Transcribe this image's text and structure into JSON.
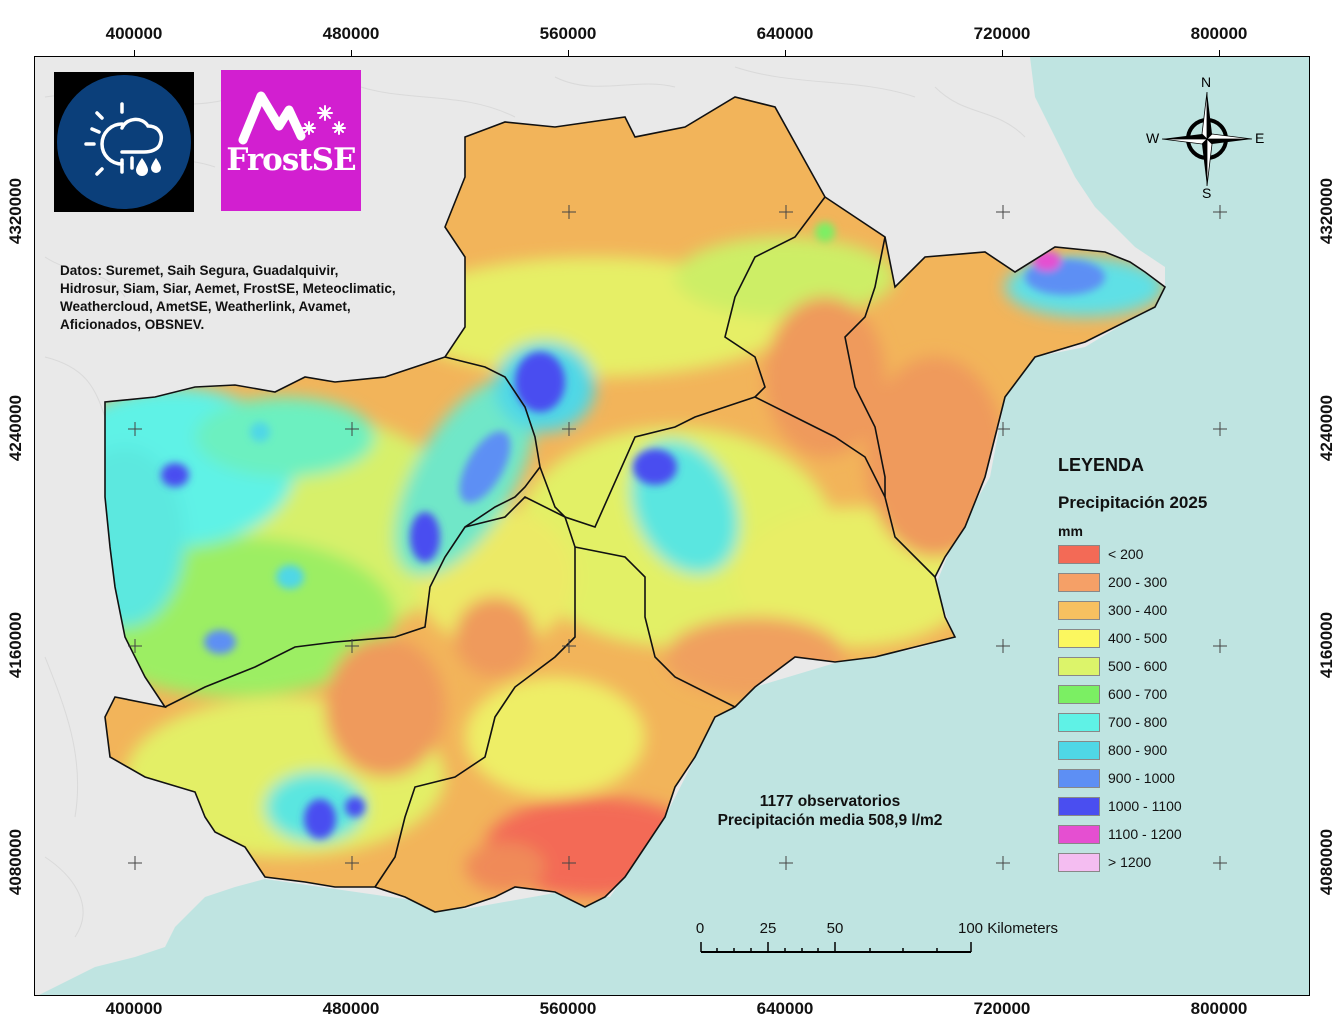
{
  "axes": {
    "x_ticks": [
      "400000",
      "480000",
      "560000",
      "640000",
      "720000",
      "800000"
    ],
    "y_ticks": [
      "4320000",
      "4240000",
      "4160000",
      "4080000"
    ]
  },
  "logos": {
    "weather_icon": "sun-cloud-rain-icon",
    "frost_name": "FrostSE",
    "frost_icon": "mountain-snowflake-icon"
  },
  "sources": {
    "lines": [
      "Datos: Suremet, Saih Segura, Guadalquivir,",
      "Hidrosur, Siam, Siar, Aemet, FrostSE, Meteoclimatic,",
      "Weathercloud, AmetSE, Weatherlink, Avamet,",
      "Aficionados, OBSNEV."
    ]
  },
  "compass": {
    "n": "N",
    "s": "S",
    "e": "E",
    "w": "W"
  },
  "legend": {
    "title": "LEYENDA",
    "subtitle": "Precipitación 2025",
    "unit": "mm",
    "items": [
      {
        "label": "< 200",
        "color": "#f36a56"
      },
      {
        "label": "200 - 300",
        "color": "#f5a067"
      },
      {
        "label": "300 - 400",
        "color": "#f7c060"
      },
      {
        "label": "400 - 500",
        "color": "#fbf75f"
      },
      {
        "label": "500 - 600",
        "color": "#dcf46a"
      },
      {
        "label": "600 - 700",
        "color": "#7bef63"
      },
      {
        "label": "700 - 800",
        "color": "#5ff2e6"
      },
      {
        "label": "800 - 900",
        "color": "#4fd7e6"
      },
      {
        "label": "900 - 1000",
        "color": "#5d8ff4"
      },
      {
        "label": "1000 - 1100",
        "color": "#4a4ef0"
      },
      {
        "label": "1100 - 1200",
        "color": "#e54fd1"
      },
      {
        "label": "> 1200",
        "color": "#f4bdf1"
      }
    ]
  },
  "stats": {
    "observatories": "1177 observatorios",
    "mean": "Precipitación media 508,9  l/m2"
  },
  "scalebar": {
    "labels": [
      "0",
      "25",
      "50",
      "100 Kilometers"
    ]
  },
  "colors": {
    "sea": "#bfe4e1",
    "land_outside": "#e9e9e9",
    "frost_bg": "#d21fd0",
    "weather_bg": "#0b3f7a"
  }
}
